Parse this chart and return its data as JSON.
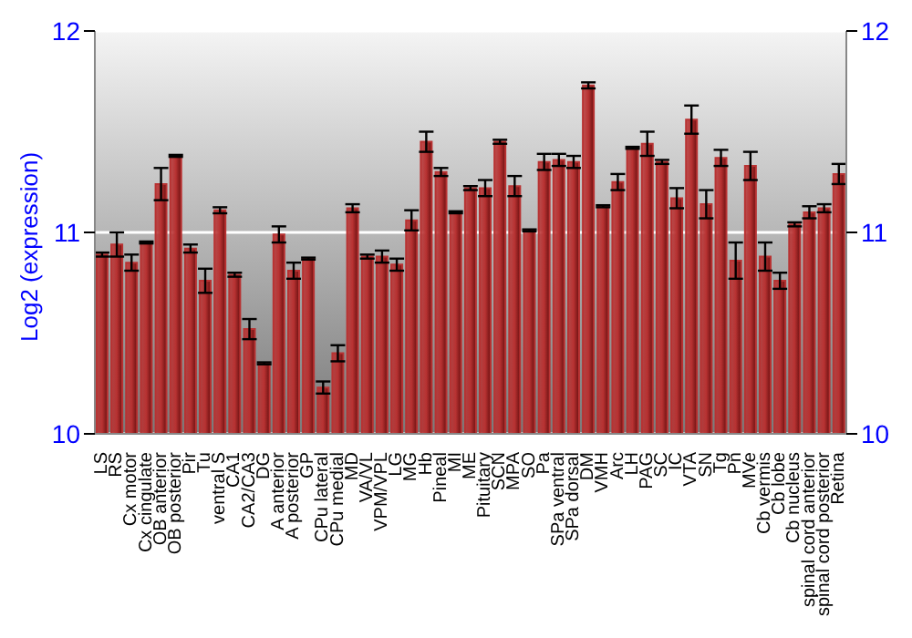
{
  "chart_data": {
    "type": "bar",
    "ylabel": "Log2 (expression)",
    "categories": [
      "LS",
      "RS",
      "Cx motor",
      "Cx cingulate",
      "OB anterior",
      "OB posterior",
      "Pir",
      "Tu",
      "ventral S",
      "CA1",
      "CA2/CA3",
      "DG",
      "A anterior",
      "A posterior",
      "GP",
      "CPu lateral",
      "CPu medial",
      "MD",
      "VA/VL",
      "VPM/VPL",
      "LG",
      "MG",
      "Hb",
      "Pineal",
      "MI",
      "ME",
      "Pituitary",
      "SCN",
      "MPA",
      "SO",
      "Pa",
      "SPa ventral",
      "SPa dorsal",
      "DM",
      "VMH",
      "Arc",
      "LH",
      "PAG",
      "SC",
      "IC",
      "VTA",
      "SN",
      "Tg",
      "Pn",
      "MVe",
      "Cb vermis",
      "Cb lobe",
      "Cb nucleus",
      "spinal cord anterior",
      "spinal cord posterior",
      "Retina"
    ],
    "values": [
      10.89,
      10.94,
      10.85,
      10.95,
      11.24,
      11.38,
      10.92,
      10.76,
      11.11,
      10.79,
      10.52,
      10.35,
      10.99,
      10.81,
      10.87,
      10.23,
      10.4,
      11.12,
      10.88,
      10.88,
      10.84,
      11.06,
      11.45,
      11.3,
      11.1,
      11.22,
      11.22,
      11.45,
      11.23,
      11.01,
      11.35,
      11.36,
      11.35,
      11.73,
      11.13,
      11.25,
      11.42,
      11.44,
      11.35,
      11.17,
      11.56,
      11.14,
      11.37,
      10.86,
      11.33,
      10.88,
      10.76,
      11.04,
      11.1,
      11.12,
      11.29
    ],
    "errors": [
      0.01,
      0.06,
      0.04,
      0.005,
      0.08,
      0.005,
      0.02,
      0.06,
      0.015,
      0.01,
      0.05,
      0.005,
      0.04,
      0.04,
      0.005,
      0.03,
      0.04,
      0.02,
      0.01,
      0.03,
      0.03,
      0.05,
      0.05,
      0.02,
      0.005,
      0.01,
      0.04,
      0.01,
      0.05,
      0.005,
      0.04,
      0.03,
      0.03,
      0.015,
      0.005,
      0.04,
      0.005,
      0.06,
      0.01,
      0.05,
      0.07,
      0.07,
      0.04,
      0.09,
      0.07,
      0.07,
      0.04,
      0.01,
      0.03,
      0.02,
      0.05
    ],
    "color": "#b83232",
    "ylim": [
      10,
      12
    ],
    "yticks": [
      10,
      11,
      12
    ],
    "y2lim": [
      10,
      12
    ],
    "y2ticks": [
      10,
      11,
      12
    ],
    "grid": "y"
  }
}
